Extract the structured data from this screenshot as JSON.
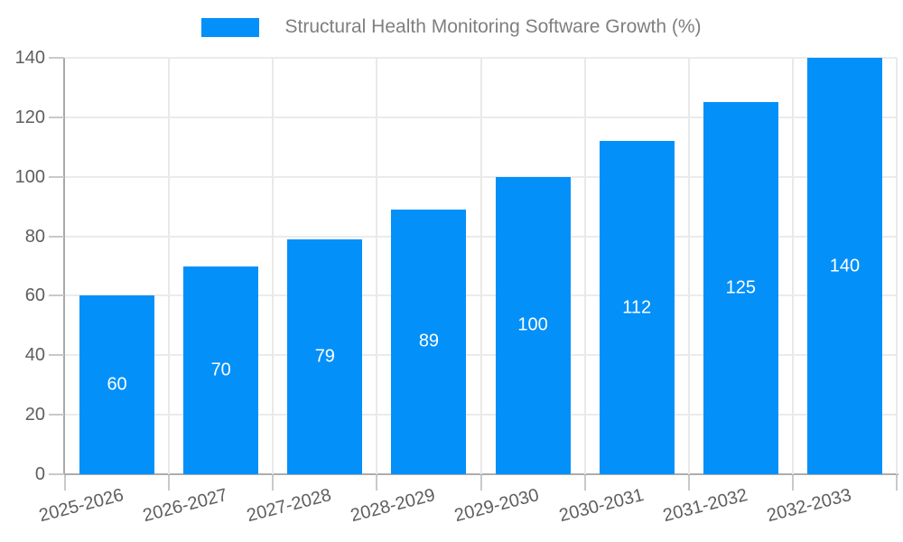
{
  "legend": {
    "label": "Structural Health Monitoring Software Growth (%)"
  },
  "chart_data": {
    "type": "bar",
    "title": "Structural Health Monitoring Software Growth (%)",
    "categories": [
      "2025-2026",
      "2026-2027",
      "2027-2028",
      "2028-2029",
      "2029-2030",
      "2030-2031",
      "2031-2032",
      "2032-2033"
    ],
    "values": [
      60,
      70,
      79,
      89,
      100,
      112,
      125,
      140
    ],
    "xlabel": "",
    "ylabel": "",
    "ylim": [
      0,
      140
    ],
    "yticks": [
      0,
      20,
      40,
      60,
      80,
      100,
      120,
      140
    ],
    "grid": true,
    "legend_position": "top",
    "value_labels": "inside-middle"
  },
  "colors": {
    "bar": "#0390f9",
    "value_label": "#ffffff",
    "grid_line": "#ebebeb",
    "axis_line": "#adadad",
    "tick": "#c9c9c9",
    "axis_label": "#5e5e5e",
    "legend_label": "#7f7f7f",
    "background": "#ffffff"
  }
}
